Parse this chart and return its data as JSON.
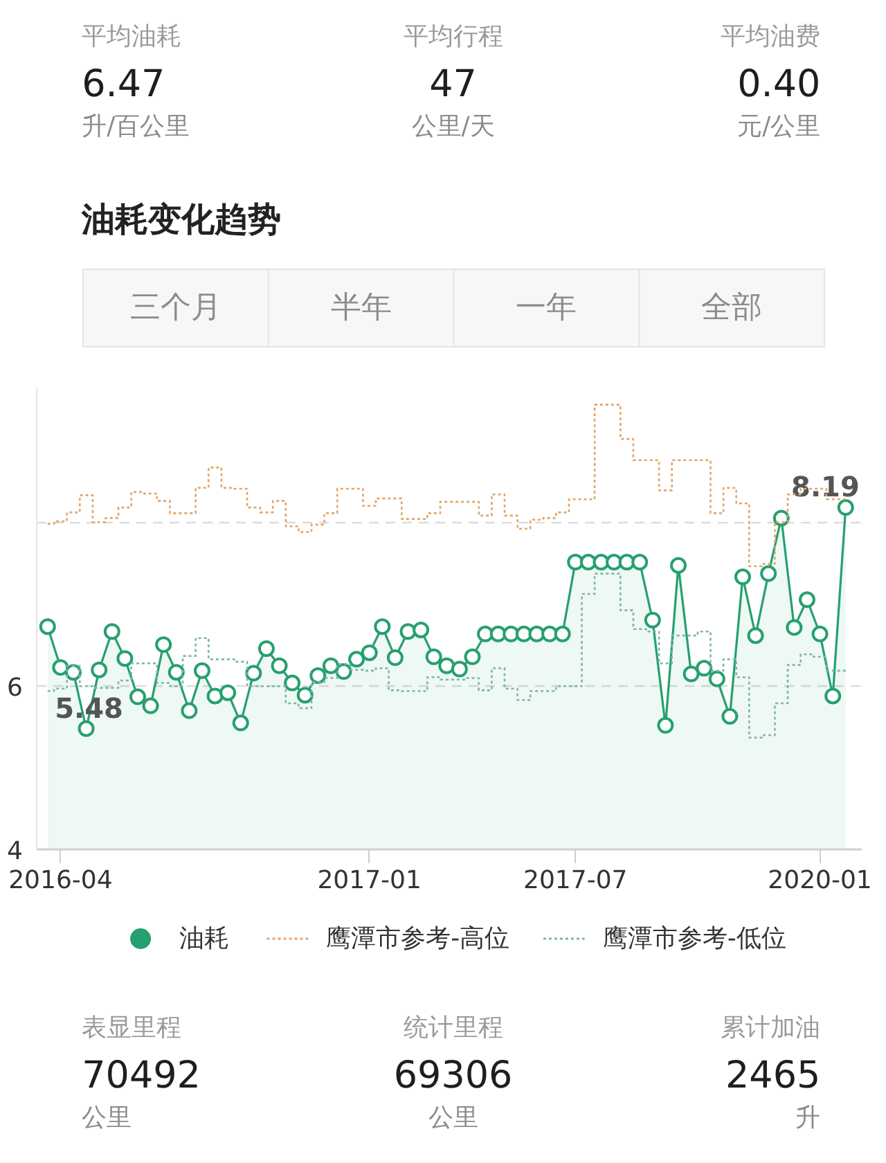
{
  "chart_data": [
    {
      "type": "other",
      "annotations": [
        "平均油耗",
        "6.47",
        "升/百公里",
        "平均行程",
        "47",
        "公里/天",
        "平均油费",
        "0.40",
        "元/公里"
      ]
    },
    {
      "type": "area",
      "title": "油耗变化趋势",
      "annotations": [
        "三个月",
        "半年",
        "一年",
        "全部"
      ],
      "categories": [
        null,
        "2016-04",
        null,
        null,
        null,
        null,
        null,
        null,
        null,
        null,
        null,
        null,
        null,
        null,
        null,
        null,
        null,
        null,
        null,
        null,
        null,
        null,
        null,
        null,
        null,
        "2017-01",
        null,
        null,
        null,
        null,
        null,
        null,
        null,
        null,
        null,
        null,
        null,
        null,
        null,
        null,
        null,
        "2017-07",
        null,
        null,
        null,
        null,
        null,
        null,
        null,
        null,
        null,
        null,
        null,
        null,
        null,
        null,
        null,
        null,
        null,
        null,
        "2020-01",
        null,
        null
      ],
      "ylim": [
        4,
        9.65
      ],
      "yticks": [
        4,
        6,
        {
          "value": 8,
          "label": null
        }
      ],
      "grid": "y",
      "legend": "bottom",
      "series": [
        {
          "name": "油耗",
          "type": "area",
          "color": "#26a06e",
          "marker": "circle",
          "line_style": "solid",
          "values": [
            6.73,
            6.23,
            6.17,
            5.48,
            6.2,
            6.67,
            6.34,
            5.87,
            5.76,
            6.51,
            6.17,
            5.7,
            6.19,
            5.88,
            5.92,
            5.55,
            6.16,
            6.46,
            6.25,
            6.04,
            5.89,
            6.13,
            6.25,
            6.18,
            6.33,
            6.41,
            6.73,
            6.35,
            6.67,
            6.69,
            6.36,
            6.25,
            6.21,
            6.36,
            6.64,
            6.64,
            6.64,
            6.64,
            6.64,
            6.64,
            6.64,
            7.52,
            7.52,
            7.52,
            7.52,
            7.52,
            7.52,
            6.81,
            5.52,
            7.48,
            6.15,
            6.22,
            6.09,
            5.63,
            7.34,
            6.62,
            7.38,
            8.06,
            6.72,
            7.06,
            6.64,
            5.88,
            8.19
          ],
          "value_labels": [
            null,
            null,
            null,
            "5.48",
            null,
            null,
            null,
            null,
            null,
            null,
            null,
            null,
            null,
            null,
            null,
            null,
            null,
            null,
            null,
            null,
            null,
            null,
            null,
            null,
            null,
            null,
            null,
            null,
            null,
            null,
            null,
            null,
            null,
            null,
            null,
            null,
            null,
            null,
            null,
            null,
            null,
            null,
            null,
            null,
            null,
            null,
            null,
            null,
            null,
            null,
            null,
            null,
            null,
            null,
            null,
            null,
            null,
            null,
            null,
            null,
            null,
            null,
            "8.19"
          ]
        },
        {
          "name": "鹰潭市参考-高位",
          "type": "step",
          "color": "#e3a466",
          "line_style": "dotted",
          "values": [
            7.99,
            8.02,
            8.13,
            8.34,
            8.01,
            8.06,
            8.19,
            8.38,
            8.36,
            8.27,
            8.12,
            8.12,
            8.43,
            8.68,
            8.43,
            8.42,
            8.19,
            8.13,
            8.27,
            7.96,
            7.89,
            7.98,
            8.12,
            8.42,
            8.42,
            8.21,
            8.3,
            8.3,
            8.05,
            8.05,
            8.12,
            8.26,
            8.26,
            8.26,
            8.09,
            8.35,
            8.09,
            7.93,
            8.04,
            8.06,
            8.13,
            8.29,
            8.29,
            9.45,
            9.45,
            9.03,
            8.77,
            8.77,
            8.4,
            8.77,
            8.77,
            8.77,
            8.12,
            8.43,
            8.24,
            7.47,
            7.5,
            8.01,
            8.35,
            8.42,
            8.42,
            8.29,
            8.29
          ]
        },
        {
          "name": "鹰潭市参考-低位",
          "type": "step",
          "color": "#7fb3ad",
          "line_style": "dotted",
          "values": [
            5.94,
            5.97,
            6.25,
            6.0,
            5.98,
            5.98,
            6.07,
            6.28,
            6.28,
            6.04,
            6.0,
            6.37,
            6.59,
            6.33,
            6.33,
            6.3,
            6.0,
            6.0,
            6.0,
            5.79,
            5.73,
            6.05,
            6.1,
            6.27,
            6.2,
            6.19,
            6.22,
            5.95,
            5.94,
            5.94,
            6.11,
            6.08,
            6.08,
            6.1,
            5.95,
            6.22,
            5.97,
            5.83,
            5.94,
            5.94,
            6.0,
            6.0,
            7.13,
            7.38,
            7.38,
            6.93,
            6.7,
            6.67,
            6.28,
            6.62,
            6.62,
            6.67,
            6.19,
            6.33,
            6.11,
            5.37,
            5.4,
            5.79,
            6.26,
            6.39,
            6.36,
            6.19,
            6.19
          ]
        }
      ]
    },
    {
      "type": "other",
      "annotations": [
        "表显里程",
        "70492",
        "公里",
        "统计里程",
        "69306",
        "公里",
        "累计加油",
        "2465",
        "升"
      ]
    }
  ]
}
